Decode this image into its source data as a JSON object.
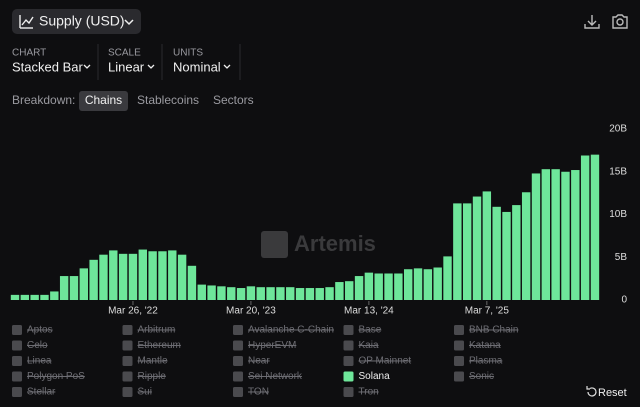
{
  "title": "Supply (USD)",
  "settings": [
    {
      "label": "CHART",
      "value": "Stacked Bar"
    },
    {
      "label": "SCALE",
      "value": "Linear"
    },
    {
      "label": "UNITS",
      "value": "Nominal"
    }
  ],
  "breakdown": {
    "label": "Breakdown:",
    "options": [
      "Chains",
      "Stablecoins",
      "Sectors"
    ]
  },
  "watermark": "Artemis",
  "reset": "Reset",
  "chart_data": {
    "type": "stacked_bar",
    "categories": [
      null,
      null,
      null,
      null,
      null,
      null,
      null,
      null,
      null,
      null,
      null,
      null,
      "Mar 26, '22",
      null,
      null,
      null,
      null,
      null,
      null,
      null,
      null,
      null,
      null,
      null,
      "Mar 20, '23",
      null,
      null,
      null,
      null,
      null,
      null,
      null,
      null,
      null,
      null,
      null,
      "Mar 13, '24",
      null,
      null,
      null,
      null,
      null,
      null,
      null,
      null,
      null,
      null,
      null,
      "Mar 7, '25",
      null,
      null,
      null,
      null,
      null,
      null,
      null,
      null,
      null,
      null,
      null
    ],
    "ylim": [
      0,
      20
    ],
    "yticks": [
      0,
      {
        "value": 5,
        "label": "5B"
      },
      {
        "value": 10,
        "label": "10B"
      },
      {
        "value": 15,
        "label": "15B"
      },
      {
        "value": 20,
        "label": "20B"
      }
    ],
    "series": [
      {
        "name": "Aptos",
        "visible": false
      },
      {
        "name": "Arbitrum",
        "visible": false
      },
      {
        "name": "Avalanche C-Chain",
        "visible": false
      },
      {
        "name": "Base",
        "visible": false
      },
      {
        "name": "BNB Chain",
        "visible": false
      },
      {
        "name": "Celo",
        "visible": false
      },
      {
        "name": "Ethereum",
        "visible": false
      },
      {
        "name": "HyperEVM",
        "visible": false
      },
      {
        "name": "Kaia",
        "visible": false
      },
      {
        "name": "Katana",
        "visible": false
      },
      {
        "name": "Linea",
        "visible": false
      },
      {
        "name": "Mantle",
        "visible": false
      },
      {
        "name": "Near",
        "visible": false
      },
      {
        "name": "OP Mainnet",
        "visible": false
      },
      {
        "name": "Plasma",
        "visible": false
      },
      {
        "name": "Polygon PoS",
        "visible": false
      },
      {
        "name": "Ripple",
        "visible": false
      },
      {
        "name": "Sei Network",
        "visible": false
      },
      {
        "name": "Solana",
        "visible": true,
        "color": "#6ee69a",
        "values": [
          0.6,
          0.6,
          0.6,
          0.6,
          1.0,
          2.8,
          2.8,
          3.7,
          4.7,
          5.3,
          5.8,
          5.4,
          5.4,
          5.9,
          5.7,
          5.7,
          5.8,
          5.3,
          4.0,
          1.8,
          1.7,
          1.6,
          1.5,
          1.4,
          1.6,
          1.5,
          1.5,
          1.5,
          1.5,
          1.4,
          1.4,
          1.4,
          1.5,
          2.1,
          2.2,
          2.8,
          3.2,
          3.1,
          3.1,
          3.1,
          3.6,
          3.7,
          3.6,
          3.8,
          5.1,
          11.3,
          11.3,
          12.1,
          12.7,
          10.9,
          10.3,
          11.1,
          12.6,
          14.8,
          15.3,
          15.3,
          15.0,
          15.2,
          16.9,
          17.0
        ]
      },
      {
        "name": "Sonic",
        "visible": false
      },
      {
        "name": "Stellar",
        "visible": false
      },
      {
        "name": "Sui",
        "visible": false
      },
      {
        "name": "TON",
        "visible": false
      },
      {
        "name": "Tron",
        "visible": false
      }
    ]
  }
}
